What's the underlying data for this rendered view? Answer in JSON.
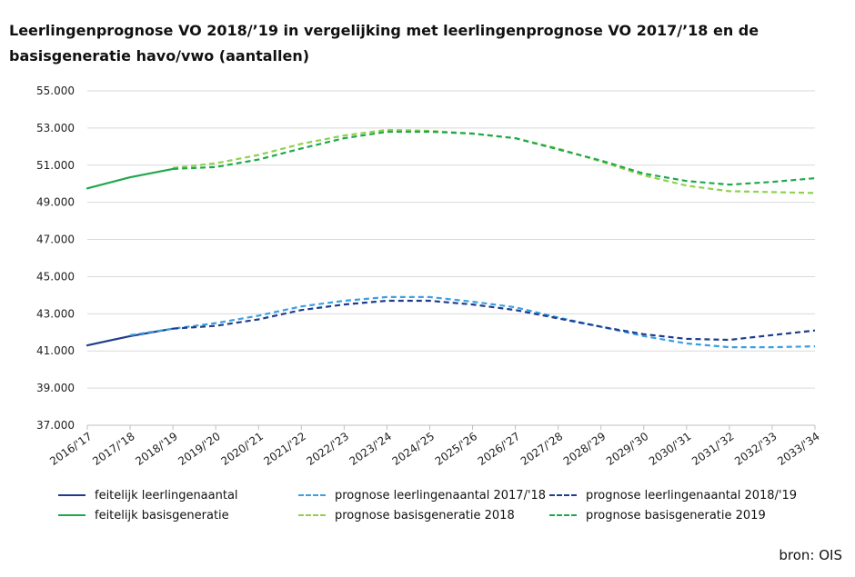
{
  "title": "Leerlingenprognose VO 2018/’19 in vergelijking met leerlingenprognose VO 2017/’18 en de basisgeneratie havo/vwo (aantallen)",
  "source": "bron: OIS",
  "chart_data": {
    "type": "line",
    "title": "Leerlingenprognose VO 2018/’19 in vergelijking met leerlingenprognose VO 2017/’18 en de basisgeneratie havo/vwo (aantallen)",
    "xlabel": "",
    "ylabel": "",
    "ylim": [
      37000,
      55000
    ],
    "yticks": [
      37000,
      39000,
      41000,
      43000,
      45000,
      47000,
      49000,
      51000,
      53000,
      55000
    ],
    "ytick_labels": [
      "37.000",
      "39.000",
      "41.000",
      "43.000",
      "45.000",
      "47.000",
      "49.000",
      "51.000",
      "53.000",
      "55.000"
    ],
    "grid": true,
    "legend_position": "bottom",
    "categories": [
      "2016/'17",
      "2017/'18",
      "2018/'19",
      "2019/'20",
      "2020/'21",
      "2021/'22",
      "2022/'23",
      "2023/'24",
      "2024/'25",
      "2025/'26",
      "2026/'27",
      "2027/'28",
      "2028/'29",
      "2029/'30",
      "2030/'31",
      "2031/'32",
      "2032/'33",
      "2033/'34"
    ],
    "series": [
      {
        "name": "feitelijk leerlingenaantal",
        "color": "#1f3d8c",
        "dashed": false,
        "values": [
          41300,
          41800,
          42200,
          null,
          null,
          null,
          null,
          null,
          null,
          null,
          null,
          null,
          null,
          null,
          null,
          null,
          null,
          null
        ]
      },
      {
        "name": "prognose leerlingenaantal 2017/'18",
        "color": "#3aa0e0",
        "dashed": true,
        "values": [
          null,
          41850,
          42200,
          42500,
          42900,
          43400,
          43700,
          43900,
          43900,
          43650,
          43350,
          42800,
          42300,
          41800,
          41400,
          41200,
          41200,
          41250
        ]
      },
      {
        "name": "prognose leerlingenaantal 2018/'19",
        "color": "#1f3d8c",
        "dashed": true,
        "values": [
          null,
          null,
          42200,
          42350,
          42700,
          43200,
          43500,
          43700,
          43700,
          43500,
          43200,
          42750,
          42300,
          41900,
          41650,
          41600,
          41850,
          42100
        ]
      },
      {
        "name": "feitelijk basisgeneratie",
        "color": "#1fa84a",
        "dashed": false,
        "values": [
          49750,
          50350,
          50800,
          null,
          null,
          null,
          null,
          null,
          null,
          null,
          null,
          null,
          null,
          null,
          null,
          null,
          null,
          null
        ]
      },
      {
        "name": "prognose basisgeneratie 2018",
        "color": "#8fd14f",
        "dashed": true,
        "values": [
          null,
          null,
          50850,
          51100,
          51550,
          52150,
          52600,
          52900,
          52850,
          52700,
          52450,
          51900,
          51200,
          50450,
          49900,
          49600,
          49550,
          49500
        ]
      },
      {
        "name": "prognose basisgeneratie 2019",
        "color": "#1fa84a",
        "dashed": true,
        "values": [
          null,
          null,
          50800,
          50900,
          51300,
          51900,
          52450,
          52800,
          52800,
          52700,
          52450,
          51850,
          51250,
          50550,
          50150,
          49950,
          50100,
          50300
        ]
      }
    ]
  }
}
